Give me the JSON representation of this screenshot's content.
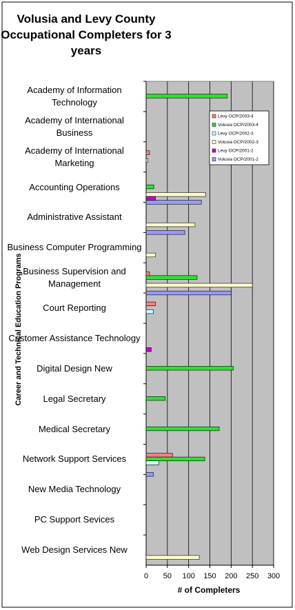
{
  "chart_data": {
    "type": "hbar",
    "title": "Volusia and Levy County Occupational Completers for 3 years",
    "x_label": "# of Completers",
    "y_label": "Career and Technical Education Programs",
    "categories": [
      "Academy of Information Technology",
      "Academy of International Business",
      "Academy of International Marketing",
      "Accounting Operations",
      "Administrative Assistant",
      "Business Computer Programming",
      "Business Supervision and Management",
      "Court Reporting",
      "Customer Assistance Technology",
      "Digital Design New",
      "Legal Secretary",
      "Medical Secretary",
      "Network Support Services",
      "New Media Technology",
      "PC Support Sevices",
      "Web Design Services New"
    ],
    "series": [
      {
        "name": "Levy OCP/2003-4",
        "color": "#ff8080",
        "values": [
          0,
          0,
          8,
          0,
          0,
          0,
          8,
          22,
          0,
          0,
          0,
          0,
          62,
          0,
          0,
          0
        ]
      },
      {
        "name": "Volusia OCP/2003-4",
        "color": "#33dd33",
        "values": [
          191,
          0,
          0,
          18,
          0,
          0,
          120,
          0,
          0,
          205,
          45,
          172,
          138,
          0,
          0,
          0
        ]
      },
      {
        "name": "Levy OCP/2002-3",
        "color": "#ccffff",
        "values": [
          0,
          0,
          4,
          0,
          0,
          0,
          0,
          17,
          0,
          0,
          0,
          0,
          30,
          0,
          0,
          0
        ]
      },
      {
        "name": "Volusia OCP/2002-3",
        "color": "#ffffcc",
        "values": [
          0,
          0,
          0,
          140,
          115,
          22,
          250,
          0,
          0,
          0,
          0,
          0,
          0,
          0,
          0,
          125
        ]
      },
      {
        "name": "Levy OCP/2001-2",
        "color": "#cc00cc",
        "values": [
          0,
          0,
          0,
          22,
          0,
          0,
          0,
          0,
          12,
          0,
          0,
          0,
          0,
          0,
          0,
          0
        ]
      },
      {
        "name": "Volusia OCP/2001-2",
        "color": "#9999ff",
        "values": [
          0,
          0,
          0,
          130,
          91,
          0,
          200,
          0,
          0,
          0,
          0,
          0,
          17,
          0,
          0,
          0
        ]
      }
    ],
    "xlim": [
      0,
      300
    ],
    "xticks": [
      0,
      50,
      100,
      150,
      200,
      250,
      300
    ],
    "grid": true,
    "legend": "upper right"
  }
}
